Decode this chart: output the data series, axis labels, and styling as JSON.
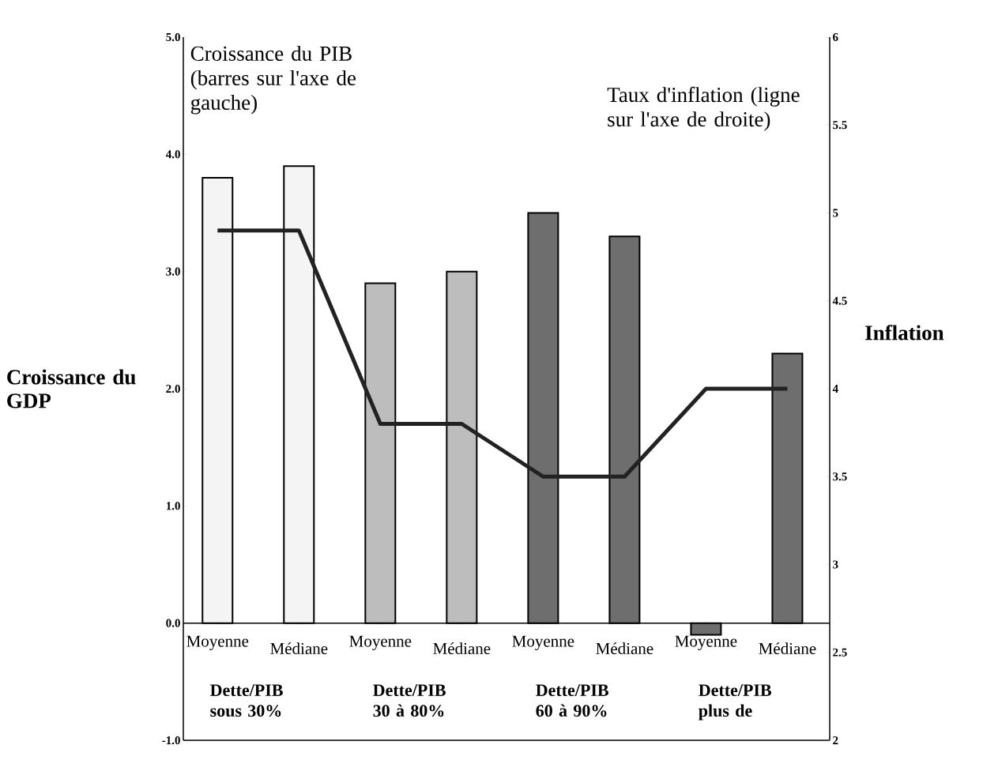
{
  "chart_data": {
    "type": "bar",
    "categories": [
      "Moyenne",
      "Médiane",
      "Moyenne",
      "Médiane",
      "Moyenne",
      "Médiane",
      "Moyenne",
      "Médiane"
    ],
    "ylabel": "Croissance du GDP",
    "y2label": "Inflation",
    "annotations": [
      "Croissance du PIB (barres sur l'axe de gauche)",
      "Taux d'inflation (ligne sur l'axe de droite)",
      "Dette/PIB sous 30%",
      "Dette/PIB 30 à 80%",
      "Dette/PIB 60 à 90%",
      "Dette/PIB plus de"
    ],
    "series": [
      {
        "colors": [
          "#f4f4f4",
          "#f4f4f4",
          "#bdbdbd",
          "#bdbdbd",
          "#6e6e6e",
          "#6e6e6e",
          "#6e6e6e",
          "#6e6e6e"
        ],
        "values": [
          3.8,
          3.9,
          2.9,
          3.0,
          3.5,
          3.3,
          -0.1,
          2.3
        ]
      },
      {
        "type": "line",
        "axis": "y2",
        "color": "#222222",
        "values": [
          4.9,
          4.9,
          3.8,
          3.8,
          3.5,
          3.5,
          4.0,
          4.0
        ]
      }
    ],
    "ylim": [
      -1,
      5
    ],
    "yticks": [
      {
        "value": -1,
        "label": "-1.0"
      },
      {
        "value": 0,
        "label": "0.0"
      },
      {
        "value": 1,
        "label": "1.0"
      },
      {
        "value": 2,
        "label": "2.0"
      },
      {
        "value": 3,
        "label": "3.0"
      },
      {
        "value": 4,
        "label": "4.0"
      },
      {
        "value": 5,
        "label": "5.0"
      }
    ],
    "y2lim": [
      2,
      6
    ],
    "y2ticks": [
      2,
      2.5,
      3,
      3.5,
      4,
      4.5,
      5,
      5.5,
      6
    ],
    "marker": "none",
    "line_style": "solid"
  }
}
